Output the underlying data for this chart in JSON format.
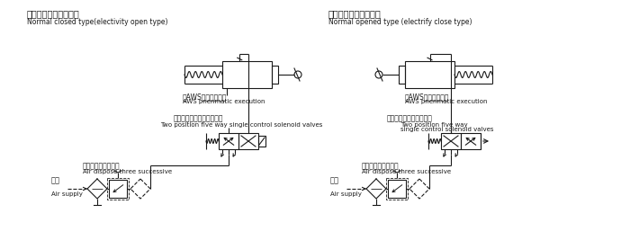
{
  "bg_color": "#ffffff",
  "line_color": "#1a1a1a",
  "text_color": "#1a1a1a",
  "left_title_cn": "常闭式（通电开启型）",
  "left_title_en": "Normal closed type(electivity open type)",
  "right_title_cn": "常开式（通电切断型）",
  "right_title_en": "Normal opened type (electrify close type)",
  "left_actuator_cn": "（AWS气动执行器）",
  "left_actuator_en": "AWS pnenmatic execution",
  "right_actuator_cn": "（AWS气动执行器）",
  "right_actuator_en": "AWS pnenmatic execution",
  "left_valve_cn": "（二位五通单电控电磁阀）",
  "left_valve_en": "Two position five way single control solenoid valves",
  "right_valve_cn": "（二位五通单控电磁阀）",
  "right_valve_en1": "Two position five way",
  "right_valve_en2": "single control solenoid valves",
  "left_air_cn": "（气源处理三联件）",
  "left_air_en": "Air dispose three successive",
  "left_air_supply_cn": "气源",
  "left_air_supply_en": "Air supply",
  "right_air_cn": "（气源处理三联件）",
  "right_air_en": "Air dispose three successive",
  "right_air_supply_cn": "气源",
  "right_air_supply_en": "Air supply"
}
